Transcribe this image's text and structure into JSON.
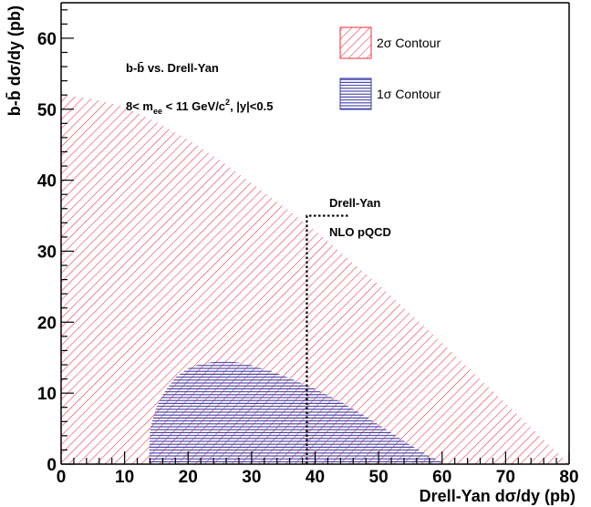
{
  "chart_data": {
    "type": "area",
    "x_axis": {
      "label": "Drell-Yan dσ/dy (pb)",
      "range": [
        0,
        80
      ],
      "ticks": [
        0,
        10,
        20,
        30,
        40,
        50,
        60,
        70,
        80
      ]
    },
    "y_axis": {
      "label": "b-b̄ dσ/dy (pb)",
      "range": [
        0,
        65
      ],
      "ticks": [
        0,
        10,
        20,
        30,
        40,
        50,
        60
      ]
    },
    "annotations": {
      "line1": "b-b̄ vs. Drell-Yan",
      "line2_prefix": "8< m",
      "line2_sub": "ee",
      "line2_mid": " < 11 GeV/c",
      "line2_sup": "2",
      "line2_suffix": ", |y|<0.5"
    },
    "theory_marker": {
      "label1": "Drell-Yan",
      "label2": "NLO pQCD",
      "x": 38.7,
      "x_end": 45.5,
      "y_top": 35,
      "style": "dotted"
    },
    "legend": {
      "placement": "top-right",
      "entries": [
        {
          "label": "2σ Contour",
          "color": "#e8303a",
          "hatch": "diagonal"
        },
        {
          "label": "1σ Contour",
          "color": "#3a3aa8",
          "hatch": "horizontal"
        }
      ]
    },
    "series": [
      {
        "name": "2σ Contour",
        "color": "#e8303a",
        "x": [
          0,
          5,
          10,
          15,
          20,
          25,
          30,
          35,
          40,
          45,
          50,
          55,
          60,
          65,
          70,
          75,
          80
        ],
        "y": [
          52,
          51.5,
          50.3,
          48.2,
          45.7,
          42.8,
          39.6,
          36.3,
          32.9,
          29.1,
          25.3,
          21.2,
          17.1,
          12.8,
          8.6,
          4.3,
          0
        ]
      },
      {
        "name": "1σ Contour",
        "color": "#3a3aa8",
        "x": [
          13.8,
          14,
          15,
          16,
          18,
          20,
          22,
          24,
          26,
          28,
          30,
          33,
          36,
          40,
          44,
          48,
          52,
          55,
          58,
          60,
          61.2
        ],
        "y": [
          0,
          5,
          8,
          9.8,
          12.2,
          13.5,
          14.1,
          14.4,
          14.5,
          14.3,
          13.9,
          13.1,
          12.1,
          10.6,
          8.8,
          6.7,
          4.4,
          2.7,
          1.1,
          0.3,
          0
        ]
      }
    ]
  }
}
